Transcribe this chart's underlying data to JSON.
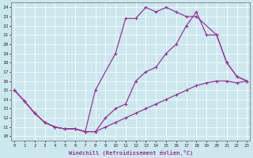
{
  "xlabel": "Windchill (Refroidissement éolien,°C)",
  "bg_color": "#cce8ee",
  "line_color": "#993399",
  "x_ticks": [
    0,
    1,
    2,
    3,
    4,
    5,
    6,
    7,
    8,
    9,
    10,
    11,
    12,
    13,
    14,
    15,
    16,
    17,
    18,
    19,
    20,
    21,
    22,
    23
  ],
  "y_ticks": [
    10,
    11,
    12,
    13,
    14,
    15,
    16,
    17,
    18,
    19,
    20,
    21,
    22,
    23,
    24
  ],
  "xlim": [
    -0.3,
    23.3
  ],
  "ylim": [
    9.5,
    24.5
  ],
  "series": [
    {
      "x": [
        0,
        1,
        2,
        3,
        4,
        5,
        6,
        7,
        8,
        10,
        11,
        12,
        13,
        14,
        15,
        16,
        17,
        18,
        20,
        21,
        22,
        23
      ],
      "y": [
        15,
        13.8,
        12.5,
        11.5,
        11.0,
        10.8,
        10.8,
        10.5,
        15.0,
        19.0,
        22.8,
        22.8,
        24.0,
        23.5,
        24.0,
        23.5,
        23.0,
        23.0,
        21.0,
        18.0,
        16.5,
        16.0
      ]
    },
    {
      "x": [
        0,
        1,
        2,
        3,
        4,
        5,
        6,
        7,
        8,
        9,
        10,
        11,
        12,
        13,
        14,
        15,
        16,
        17,
        18,
        19,
        20,
        21,
        22,
        23
      ],
      "y": [
        15,
        13.8,
        12.5,
        11.5,
        11.0,
        10.8,
        10.8,
        10.5,
        10.5,
        12.0,
        13.0,
        13.5,
        16.0,
        17.0,
        17.5,
        19.0,
        20.0,
        22.0,
        23.5,
        21.0,
        21.0,
        18.0,
        16.5,
        16.0
      ]
    },
    {
      "x": [
        0,
        1,
        2,
        3,
        4,
        5,
        6,
        7,
        8,
        9,
        10,
        11,
        12,
        13,
        14,
        15,
        16,
        17,
        18,
        19,
        20,
        21,
        22,
        23
      ],
      "y": [
        15,
        13.8,
        12.5,
        11.5,
        11.0,
        10.8,
        10.8,
        10.5,
        10.5,
        11.0,
        11.5,
        12.0,
        12.5,
        13.0,
        13.5,
        14.0,
        14.5,
        15.0,
        15.5,
        15.8,
        16.0,
        16.0,
        15.8,
        16.0
      ]
    }
  ]
}
